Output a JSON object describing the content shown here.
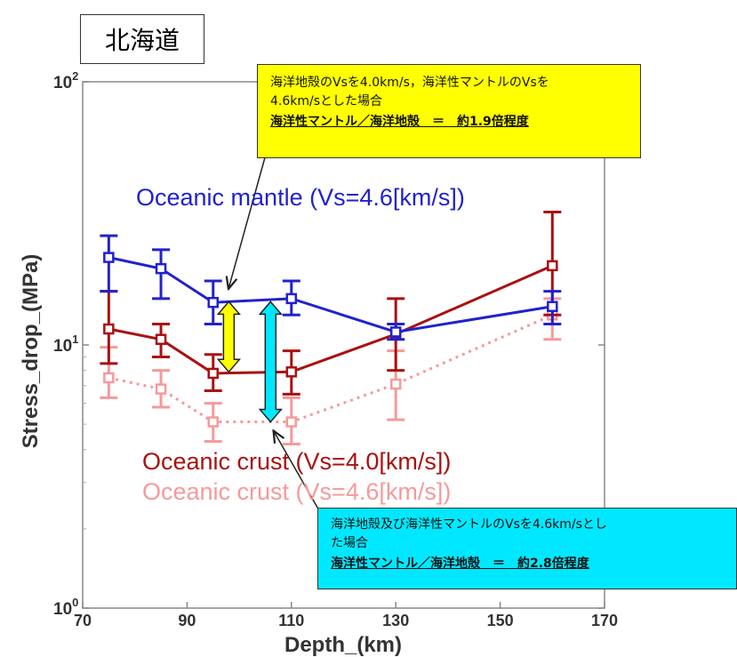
{
  "region_label": "北海道",
  "callouts": {
    "yellow": {
      "line1": "海洋地殻のVsを4.0km/s，海洋性マントルのVsを",
      "line2": "4.6km/sとした場合",
      "emphasis": "海洋性マントル／海洋地殻　＝　約1.9倍程度",
      "color": "#ffff00"
    },
    "cyan": {
      "line1": "海洋地殻及び海洋性マントルのVsを4.6km/sとし",
      "line2": "た場合",
      "emphasis": "海洋性マントル／海洋地殻　＝　約2.8倍程度",
      "color": "#00e8ff"
    }
  },
  "chart_data": {
    "type": "line",
    "xlabel": "Depth_(km)",
    "ylabel": "Stress_drop_(MPa)",
    "xlim": [
      70,
      170
    ],
    "ylim": [
      1,
      100
    ],
    "y_scale": "log",
    "x_ticks": [
      70,
      90,
      110,
      130,
      150,
      170
    ],
    "y_ticks": [
      {
        "base": "10",
        "exp": "0",
        "value": 1
      },
      {
        "base": "10",
        "exp": "1",
        "value": 10
      },
      {
        "base": "10",
        "exp": "2",
        "value": 100
      }
    ],
    "series": [
      {
        "name": "Oceanic mantle (Vs=4.6[km/s])",
        "color": "#2222cc",
        "dashed": false,
        "x": [
          75,
          85,
          95,
          110,
          130,
          160
        ],
        "y": [
          21.5,
          19.5,
          14.5,
          15,
          11.2,
          14
        ],
        "err_low": [
          16,
          15,
          12,
          13,
          10.5,
          12
        ],
        "err_high": [
          26,
          23,
          17.5,
          17.5,
          12,
          16
        ]
      },
      {
        "name": "Oceanic crust (Vs=4.0[km/s])",
        "color": "#aa1111",
        "dashed": false,
        "x": [
          75,
          85,
          95,
          110,
          130,
          160
        ],
        "y": [
          11.5,
          10.5,
          7.8,
          7.9,
          11,
          20
        ],
        "err_low": [
          8.5,
          9,
          6.7,
          6.5,
          8,
          13
        ],
        "err_high": [
          16,
          12,
          9.2,
          9.5,
          15,
          32
        ]
      },
      {
        "name": "Oceanic crust (Vs=4.6[km/s])",
        "color": "#f59a9a",
        "dashed": true,
        "x": [
          75,
          85,
          95,
          110,
          130,
          160
        ],
        "y": [
          7.5,
          6.8,
          5.1,
          5.1,
          7.1,
          13
        ],
        "err_low": [
          6.3,
          5.8,
          4.3,
          4.2,
          5.2,
          10.5
        ],
        "err_high": [
          9.8,
          8,
          6,
          6.3,
          9.5,
          15
        ]
      }
    ],
    "annotations": {
      "yellow_arrow": {
        "x": 98,
        "y_low": 7.9,
        "y_high": 14.6
      },
      "cyan_arrow": {
        "x": 106,
        "y_low": 5.1,
        "y_high": 14.6
      },
      "yellow_pointer_target": {
        "x": 98,
        "y": 16.5
      },
      "cyan_pointer_target": {
        "x": 106,
        "y": 4.9
      }
    }
  }
}
